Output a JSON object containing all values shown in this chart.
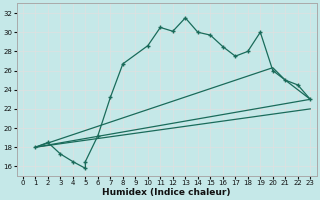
{
  "xlabel": "Humidex (Indice chaleur)",
  "ylabel": "",
  "xlim": [
    -0.5,
    23.5
  ],
  "ylim": [
    15,
    33
  ],
  "yticks": [
    16,
    18,
    20,
    22,
    24,
    26,
    28,
    30,
    32
  ],
  "xticks": [
    0,
    1,
    2,
    3,
    4,
    5,
    6,
    7,
    8,
    9,
    10,
    11,
    12,
    13,
    14,
    15,
    16,
    17,
    18,
    19,
    20,
    21,
    22,
    23
  ],
  "bg_color": "#c5e8e8",
  "line_color": "#1a6b5a",
  "grid_color": "#e0e0e0",
  "line1_x": [
    1,
    2,
    3,
    4,
    5,
    5,
    6,
    7,
    8,
    10,
    11,
    12,
    13,
    14,
    15,
    16,
    17,
    18,
    19,
    20,
    21,
    22,
    23
  ],
  "line1_y": [
    18,
    18.5,
    17.3,
    16.5,
    15.8,
    16.5,
    19.2,
    23.2,
    26.7,
    28.6,
    30.5,
    30.1,
    31.5,
    30.0,
    29.7,
    28.5,
    27.5,
    28.0,
    30.0,
    26.0,
    25.0,
    24.5,
    23.0
  ],
  "line2_x": [
    1,
    20,
    21,
    22,
    23
  ],
  "line2_y": [
    18,
    26.3,
    25.0,
    24.0,
    23.0
  ],
  "line3_x": [
    1,
    23
  ],
  "line3_y": [
    18,
    23.0
  ],
  "line4_x": [
    1,
    23
  ],
  "line4_y": [
    18,
    22.0
  ]
}
